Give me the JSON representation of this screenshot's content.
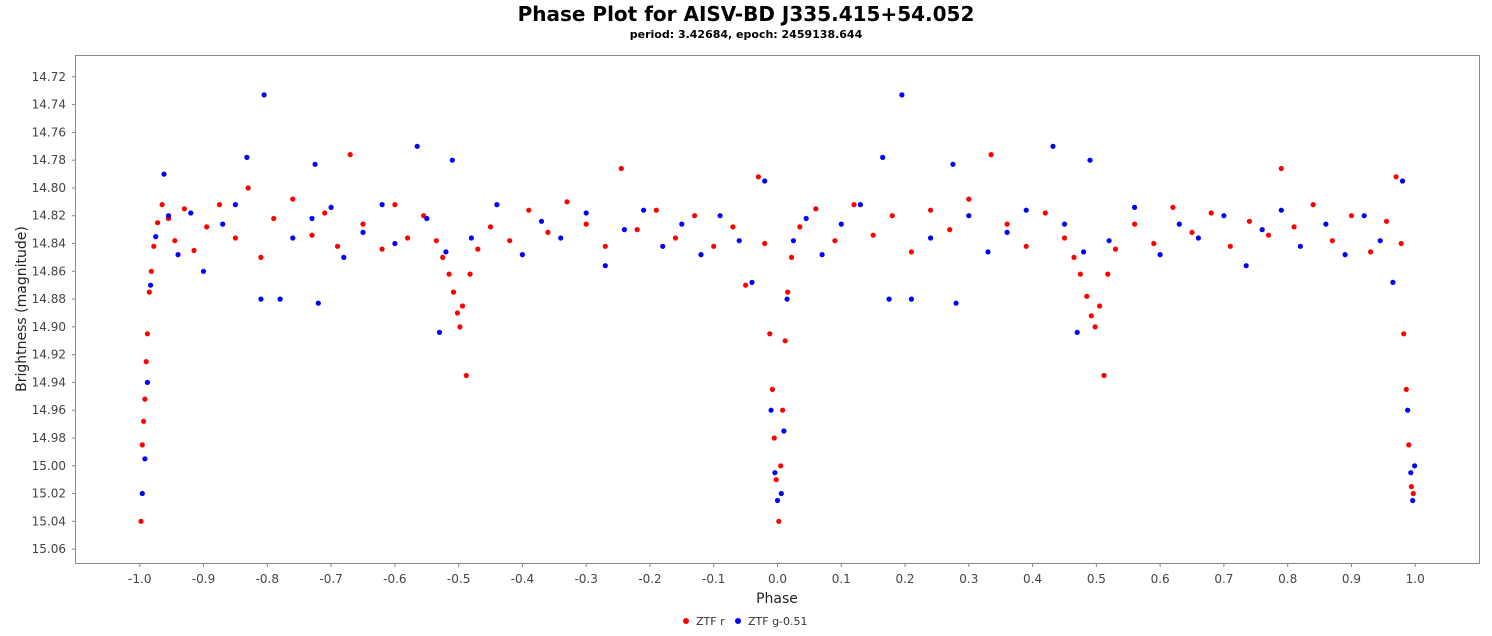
{
  "chart_data": {
    "type": "scatter",
    "title": "Phase Plot for AISV-BD J335.415+54.052",
    "subtitle": "period: 3.42684, epoch: 2459138.644",
    "xlabel": "Phase",
    "ylabel": "Brightness (magnitude)",
    "xlim": [
      -1.1,
      1.1
    ],
    "ylim": [
      14.705,
      15.07
    ],
    "y_inverted": true,
    "grid": false,
    "legend_position": "bottom-center",
    "x_ticks": [
      "-1.0",
      "-0.9",
      "-0.8",
      "-0.7",
      "-0.6",
      "-0.5",
      "-0.4",
      "-0.3",
      "-0.2",
      "-0.1",
      "0.0",
      "0.1",
      "0.2",
      "0.3",
      "0.4",
      "0.5",
      "0.6",
      "0.7",
      "0.8",
      "0.9",
      "1.0"
    ],
    "y_ticks": [
      "14.72",
      "14.74",
      "14.76",
      "14.78",
      "14.80",
      "14.82",
      "14.84",
      "14.86",
      "14.88",
      "14.90",
      "14.92",
      "14.94",
      "14.96",
      "14.98",
      "15.00",
      "15.02",
      "15.04",
      "15.06"
    ],
    "series": [
      {
        "name": "ZTF r",
        "color": "#ff0000",
        "points": [
          [
            -0.998,
            15.04
          ],
          [
            -0.996,
            14.985
          ],
          [
            -0.994,
            14.968
          ],
          [
            -0.992,
            14.952
          ],
          [
            -0.99,
            14.925
          ],
          [
            -0.988,
            14.905
          ],
          [
            -0.985,
            14.875
          ],
          [
            -0.982,
            14.86
          ],
          [
            -0.978,
            14.842
          ],
          [
            -0.972,
            14.825
          ],
          [
            -0.965,
            14.812
          ],
          [
            -0.955,
            14.822
          ],
          [
            -0.945,
            14.838
          ],
          [
            -0.93,
            14.815
          ],
          [
            -0.915,
            14.845
          ],
          [
            -0.895,
            14.828
          ],
          [
            -0.875,
            14.812
          ],
          [
            -0.85,
            14.836
          ],
          [
            -0.83,
            14.8
          ],
          [
            -0.81,
            14.85
          ],
          [
            -0.79,
            14.822
          ],
          [
            -0.76,
            14.808
          ],
          [
            -0.73,
            14.834
          ],
          [
            -0.71,
            14.818
          ],
          [
            -0.69,
            14.842
          ],
          [
            -0.67,
            14.776
          ],
          [
            -0.65,
            14.826
          ],
          [
            -0.62,
            14.844
          ],
          [
            -0.6,
            14.812
          ],
          [
            -0.58,
            14.836
          ],
          [
            -0.555,
            14.82
          ],
          [
            -0.535,
            14.838
          ],
          [
            -0.525,
            14.85
          ],
          [
            -0.515,
            14.862
          ],
          [
            -0.508,
            14.875
          ],
          [
            -0.502,
            14.89
          ],
          [
            -0.498,
            14.9
          ],
          [
            -0.494,
            14.885
          ],
          [
            -0.488,
            14.935
          ],
          [
            -0.482,
            14.862
          ],
          [
            -0.47,
            14.844
          ],
          [
            -0.45,
            14.828
          ],
          [
            -0.42,
            14.838
          ],
          [
            -0.39,
            14.816
          ],
          [
            -0.36,
            14.832
          ],
          [
            -0.33,
            14.81
          ],
          [
            -0.3,
            14.826
          ],
          [
            -0.27,
            14.842
          ],
          [
            -0.245,
            14.786
          ],
          [
            -0.22,
            14.83
          ],
          [
            -0.19,
            14.816
          ],
          [
            -0.16,
            14.836
          ],
          [
            -0.13,
            14.82
          ],
          [
            -0.1,
            14.842
          ],
          [
            -0.07,
            14.828
          ],
          [
            -0.05,
            14.87
          ],
          [
            -0.03,
            14.792
          ],
          [
            -0.02,
            14.84
          ],
          [
            -0.012,
            14.905
          ],
          [
            -0.008,
            14.945
          ],
          [
            -0.005,
            14.98
          ],
          [
            -0.002,
            15.01
          ],
          [
            0.002,
            15.04
          ],
          [
            0.005,
            15.0
          ],
          [
            0.008,
            14.96
          ],
          [
            0.012,
            14.91
          ],
          [
            0.016,
            14.875
          ],
          [
            0.022,
            14.85
          ],
          [
            0.035,
            14.828
          ],
          [
            0.06,
            14.815
          ],
          [
            0.09,
            14.838
          ],
          [
            0.12,
            14.812
          ],
          [
            0.15,
            14.834
          ],
          [
            0.18,
            14.82
          ],
          [
            0.21,
            14.846
          ],
          [
            0.24,
            14.816
          ],
          [
            0.27,
            14.83
          ],
          [
            0.3,
            14.808
          ],
          [
            0.335,
            14.776
          ],
          [
            0.36,
            14.826
          ],
          [
            0.39,
            14.842
          ],
          [
            0.42,
            14.818
          ],
          [
            0.45,
            14.836
          ],
          [
            0.465,
            14.85
          ],
          [
            0.475,
            14.862
          ],
          [
            0.485,
            14.878
          ],
          [
            0.492,
            14.892
          ],
          [
            0.498,
            14.9
          ],
          [
            0.505,
            14.885
          ],
          [
            0.512,
            14.935
          ],
          [
            0.518,
            14.862
          ],
          [
            0.53,
            14.844
          ],
          [
            0.56,
            14.826
          ],
          [
            0.59,
            14.84
          ],
          [
            0.62,
            14.814
          ],
          [
            0.65,
            14.832
          ],
          [
            0.68,
            14.818
          ],
          [
            0.71,
            14.842
          ],
          [
            0.74,
            14.824
          ],
          [
            0.77,
            14.834
          ],
          [
            0.79,
            14.786
          ],
          [
            0.81,
            14.828
          ],
          [
            0.84,
            14.812
          ],
          [
            0.87,
            14.838
          ],
          [
            0.9,
            14.82
          ],
          [
            0.93,
            14.846
          ],
          [
            0.955,
            14.824
          ],
          [
            0.97,
            14.792
          ],
          [
            0.978,
            14.84
          ],
          [
            0.982,
            14.905
          ],
          [
            0.986,
            14.945
          ],
          [
            0.99,
            14.985
          ],
          [
            0.994,
            15.015
          ],
          [
            0.997,
            15.02
          ]
        ]
      },
      {
        "name": "ZTF g-0.51",
        "color": "#0000ff",
        "points": [
          [
            -0.996,
            15.02
          ],
          [
            -0.992,
            14.995
          ],
          [
            -0.988,
            14.94
          ],
          [
            -0.983,
            14.87
          ],
          [
            -0.975,
            14.835
          ],
          [
            -0.962,
            14.79
          ],
          [
            -0.955,
            14.82
          ],
          [
            -0.94,
            14.848
          ],
          [
            -0.92,
            14.818
          ],
          [
            -0.9,
            14.86
          ],
          [
            -0.87,
            14.826
          ],
          [
            -0.85,
            14.812
          ],
          [
            -0.832,
            14.778
          ],
          [
            -0.81,
            14.88
          ],
          [
            -0.805,
            14.733
          ],
          [
            -0.78,
            14.88
          ],
          [
            -0.76,
            14.836
          ],
          [
            -0.73,
            14.822
          ],
          [
            -0.725,
            14.783
          ],
          [
            -0.72,
            14.883
          ],
          [
            -0.7,
            14.814
          ],
          [
            -0.68,
            14.85
          ],
          [
            -0.65,
            14.832
          ],
          [
            -0.62,
            14.812
          ],
          [
            -0.6,
            14.84
          ],
          [
            -0.565,
            14.77
          ],
          [
            -0.55,
            14.822
          ],
          [
            -0.53,
            14.904
          ],
          [
            -0.52,
            14.846
          ],
          [
            -0.51,
            14.78
          ],
          [
            -0.48,
            14.836
          ],
          [
            -0.44,
            14.812
          ],
          [
            -0.4,
            14.848
          ],
          [
            -0.37,
            14.824
          ],
          [
            -0.34,
            14.836
          ],
          [
            -0.3,
            14.818
          ],
          [
            -0.27,
            14.856
          ],
          [
            -0.24,
            14.83
          ],
          [
            -0.21,
            14.816
          ],
          [
            -0.18,
            14.842
          ],
          [
            -0.15,
            14.826
          ],
          [
            -0.12,
            14.848
          ],
          [
            -0.09,
            14.82
          ],
          [
            -0.06,
            14.838
          ],
          [
            -0.04,
            14.868
          ],
          [
            -0.02,
            14.795
          ],
          [
            -0.01,
            14.96
          ],
          [
            -0.004,
            15.005
          ],
          [
            0.0,
            15.025
          ],
          [
            0.006,
            15.02
          ],
          [
            0.01,
            14.975
          ],
          [
            0.015,
            14.88
          ],
          [
            0.025,
            14.838
          ],
          [
            0.045,
            14.822
          ],
          [
            0.07,
            14.848
          ],
          [
            0.1,
            14.826
          ],
          [
            0.13,
            14.812
          ],
          [
            0.165,
            14.778
          ],
          [
            0.175,
            14.88
          ],
          [
            0.195,
            14.733
          ],
          [
            0.21,
            14.88
          ],
          [
            0.24,
            14.836
          ],
          [
            0.275,
            14.783
          ],
          [
            0.28,
            14.883
          ],
          [
            0.3,
            14.82
          ],
          [
            0.33,
            14.846
          ],
          [
            0.36,
            14.832
          ],
          [
            0.39,
            14.816
          ],
          [
            0.432,
            14.77
          ],
          [
            0.45,
            14.826
          ],
          [
            0.47,
            14.904
          ],
          [
            0.48,
            14.846
          ],
          [
            0.49,
            14.78
          ],
          [
            0.52,
            14.838
          ],
          [
            0.56,
            14.814
          ],
          [
            0.6,
            14.848
          ],
          [
            0.63,
            14.826
          ],
          [
            0.66,
            14.836
          ],
          [
            0.7,
            14.82
          ],
          [
            0.735,
            14.856
          ],
          [
            0.76,
            14.83
          ],
          [
            0.79,
            14.816
          ],
          [
            0.82,
            14.842
          ],
          [
            0.86,
            14.826
          ],
          [
            0.89,
            14.848
          ],
          [
            0.92,
            14.82
          ],
          [
            0.945,
            14.838
          ],
          [
            0.965,
            14.868
          ],
          [
            0.98,
            14.795
          ],
          [
            0.988,
            14.96
          ],
          [
            0.993,
            15.005
          ],
          [
            0.996,
            15.025
          ],
          [
            0.999,
            15.0
          ]
        ]
      }
    ]
  }
}
